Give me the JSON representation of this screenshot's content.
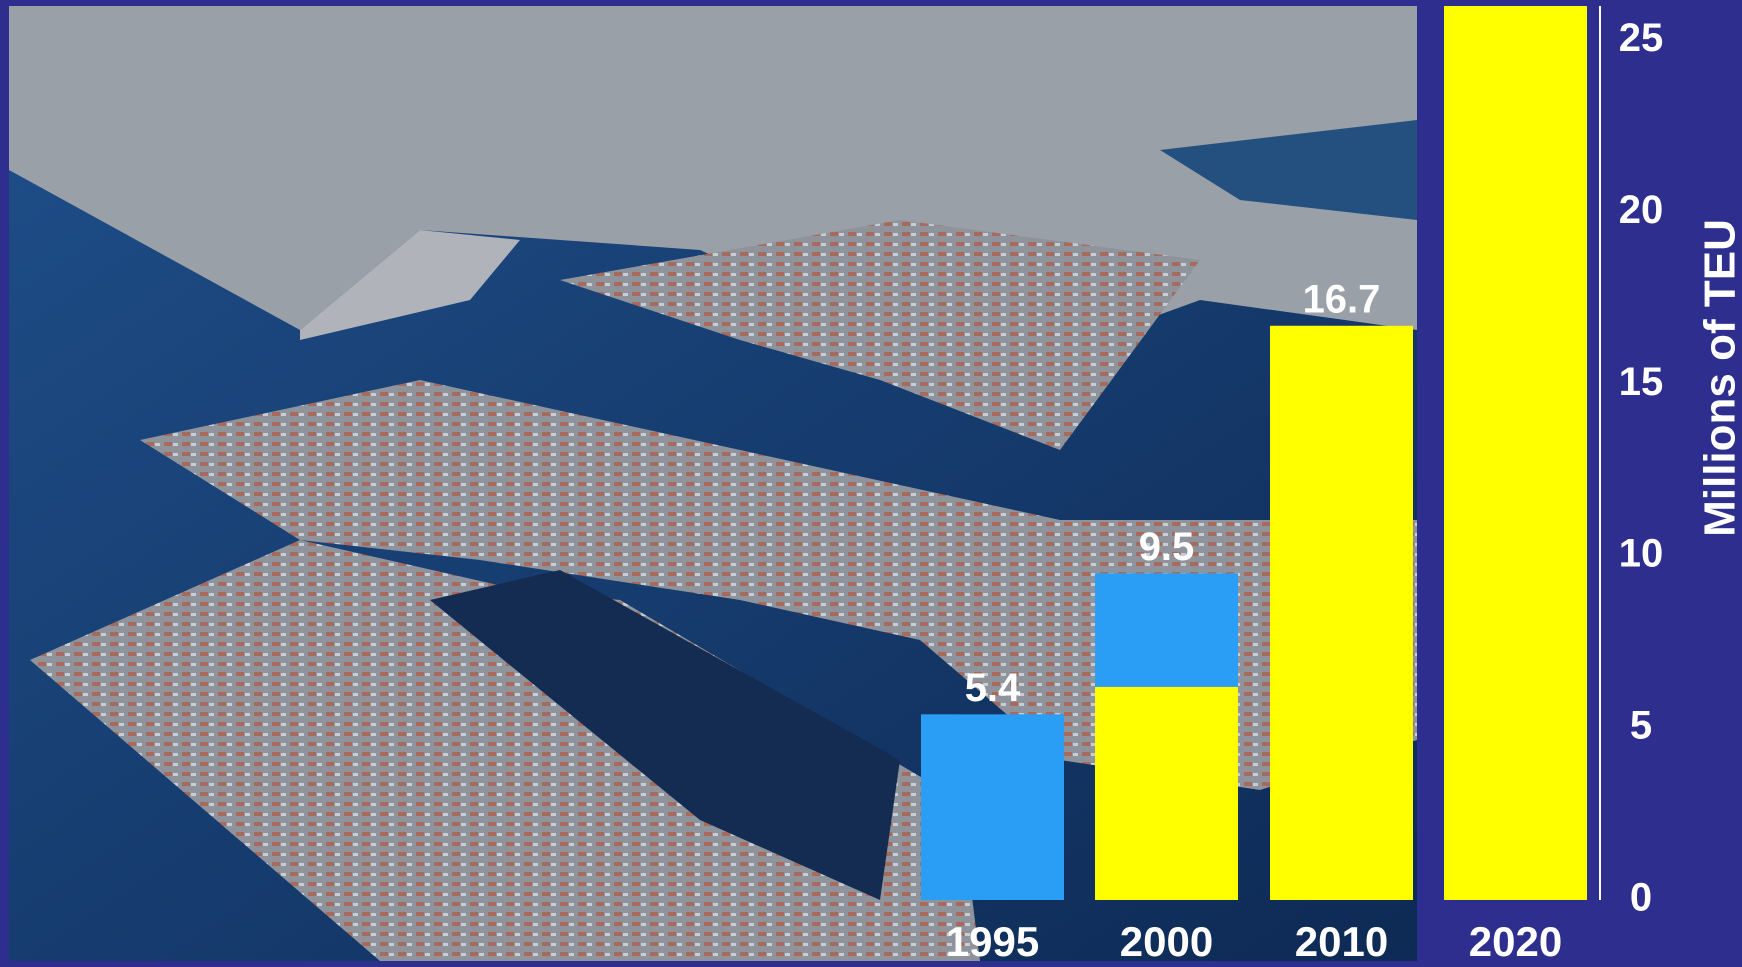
{
  "chart_data": {
    "type": "stacked_bar",
    "ylabel": "Millions of TEU",
    "categories": [
      "1995",
      "2000",
      "2010",
      "2020"
    ],
    "series": [
      {
        "color": "#ffff00",
        "values": [
          null,
          6.2,
          16.7,
          26
        ]
      },
      {
        "color": "#2a9df4",
        "values": [
          5.4,
          3.3,
          null,
          null
        ]
      }
    ],
    "totals": [
      5.4,
      9.5,
      16.7,
      null
    ],
    "ylim": [
      0,
      26
    ],
    "yticks": [
      0,
      5,
      10,
      15,
      20,
      25
    ],
    "grid": false
  }
}
